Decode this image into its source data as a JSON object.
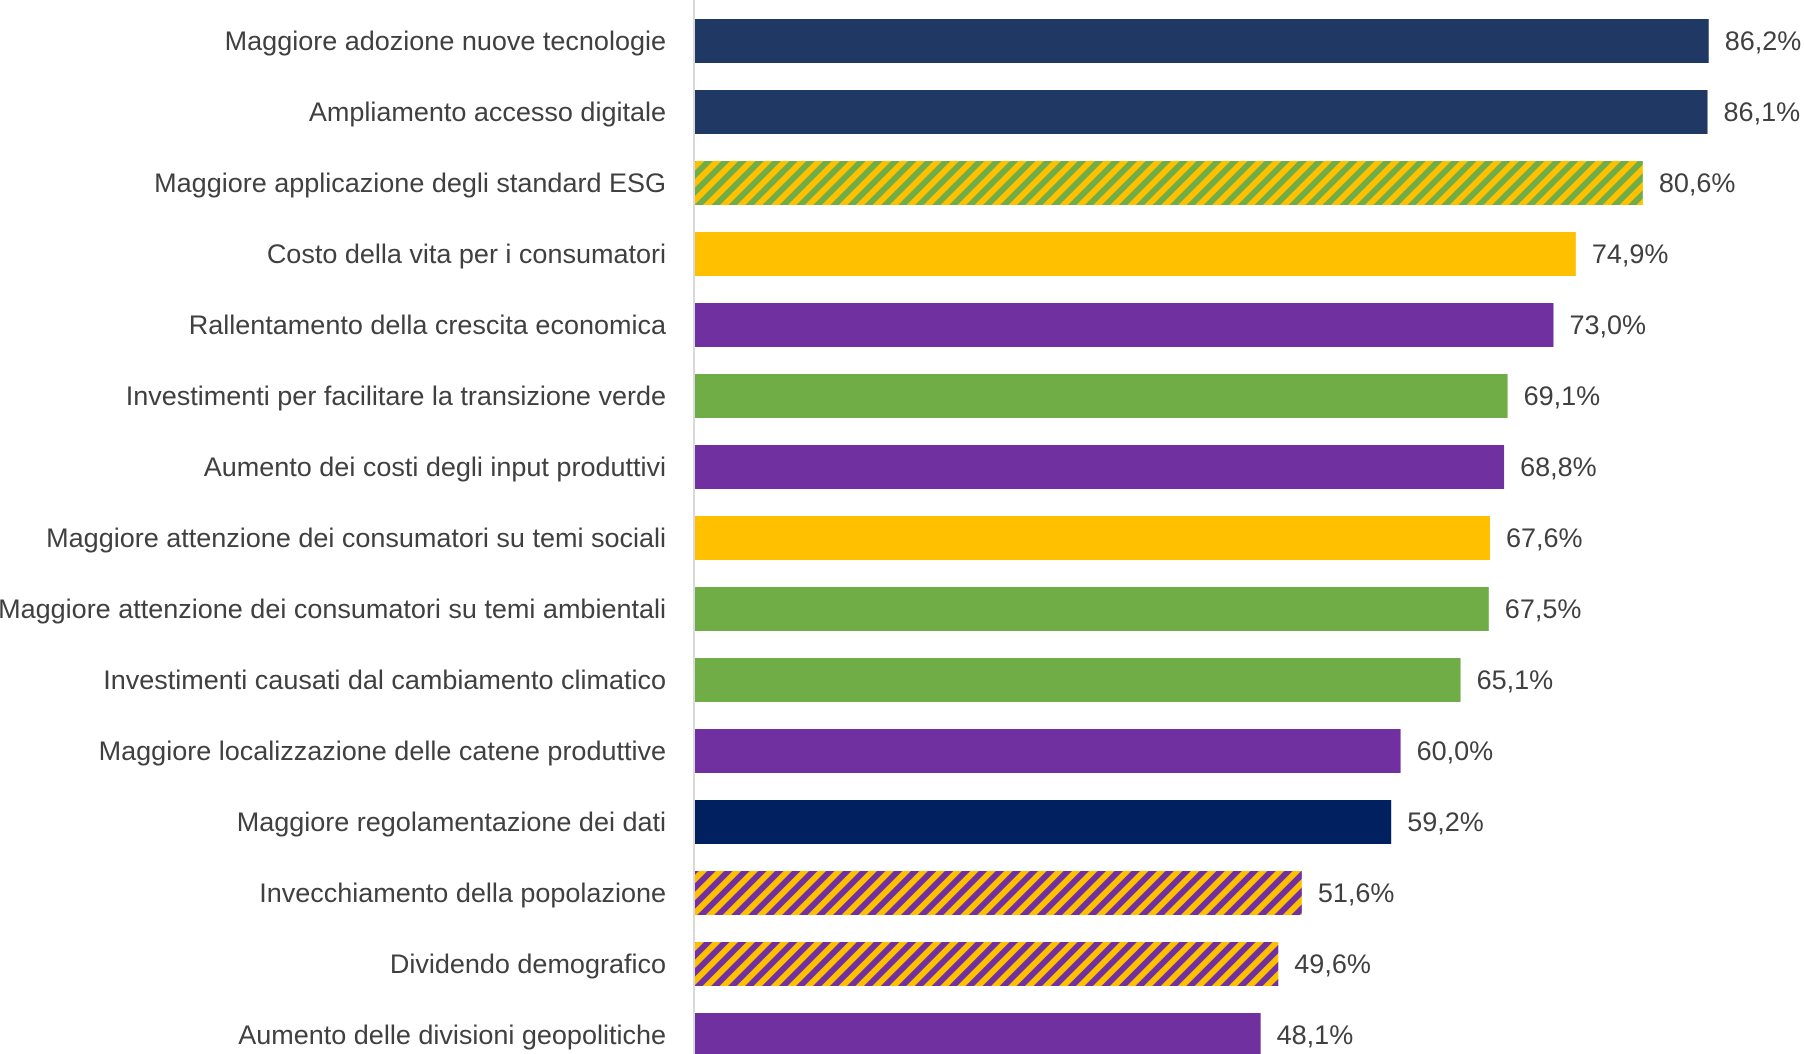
{
  "colors": {
    "navy": "#1F3864",
    "dark_navy": "#002060",
    "gold": "#FFC000",
    "purple": "#7030A0",
    "green": "#70AD47",
    "axis": "#D9D9D9",
    "text": "#404040"
  },
  "chart_data": {
    "type": "bar",
    "orientation": "horizontal",
    "title": "",
    "xlabel": "",
    "ylabel": "",
    "xlim": [
      0,
      90
    ],
    "grid": false,
    "legend": "none",
    "categories": [
      "Maggiore adozione nuove tecnologie",
      "Ampliamento accesso digitale",
      "Maggiore applicazione degli standard ESG",
      "Costo della vita per i consumatori",
      "Rallentamento della crescita economica",
      "Investimenti per facilitare la transizione verde",
      "Aumento dei costi degli input produttivi",
      "Maggiore attenzione dei consumatori su temi sociali",
      "Maggiore attenzione dei consumatori su temi ambientali",
      "Investimenti causati dal cambiamento climatico",
      "Maggiore localizzazione delle catene produttive",
      "Maggiore regolamentazione dei dati",
      "Invecchiamento della popolazione",
      "Dividendo demografico",
      "Aumento delle divisioni geopolitiche"
    ],
    "values": [
      86.2,
      86.1,
      80.6,
      74.9,
      73.0,
      69.1,
      68.8,
      67.6,
      67.5,
      65.1,
      60.0,
      59.2,
      51.6,
      49.6,
      48.1
    ],
    "value_labels": [
      "86,2%",
      "86,1%",
      "80,6%",
      "74,9%",
      "73,0%",
      "69,1%",
      "68,8%",
      "67,6%",
      "67,5%",
      "65,1%",
      "60,0%",
      "59,2%",
      "51,6%",
      "49,6%",
      "48,1%"
    ],
    "bar_fills": [
      "navy",
      "navy",
      "stripe-green-gold",
      "gold",
      "purple",
      "green",
      "purple",
      "gold",
      "green",
      "green",
      "purple",
      "dark_navy",
      "stripe-purple-gold",
      "stripe-purple-gold",
      "purple"
    ]
  }
}
